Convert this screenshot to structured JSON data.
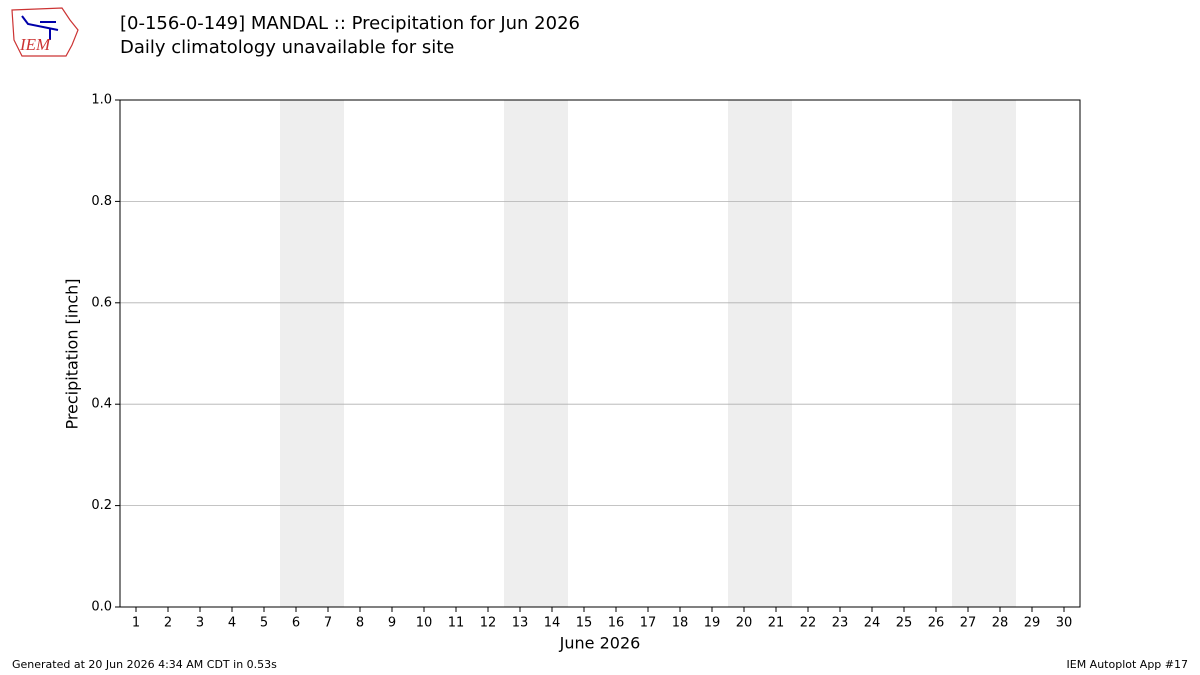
{
  "chart_data": {
    "type": "bar",
    "title": "[0-156-0-149] MANDAL :: Precipitation for Jun 2026",
    "subtitle": "Daily climatology unavailable for site",
    "x_label": "June 2026",
    "y_label": "Precipitation [inch]",
    "xlim": [
      0.5,
      30.5
    ],
    "xticks": [
      1,
      2,
      3,
      4,
      5,
      6,
      7,
      8,
      9,
      10,
      11,
      12,
      13,
      14,
      15,
      16,
      17,
      18,
      19,
      20,
      21,
      22,
      23,
      24,
      25,
      26,
      27,
      28,
      29,
      30
    ],
    "ylim": [
      0,
      1
    ],
    "yticks": [
      {
        "value": 0,
        "label": "0.0"
      },
      0.2,
      0.4,
      0.6,
      0.8,
      {
        "value": 1,
        "label": "1.0"
      }
    ],
    "grid": true,
    "shaded_spans": [
      [
        5.5,
        7.5
      ],
      [
        12.5,
        14.5
      ],
      [
        19.5,
        21.5
      ],
      [
        26.5,
        28.5
      ]
    ],
    "shade_color": "#eeeeee"
  },
  "logo_text": "IEM",
  "footer_left": "Generated at 20 Jun 2026 4:34 AM CDT in 0.53s",
  "footer_right": "IEM Autoplot App #17"
}
